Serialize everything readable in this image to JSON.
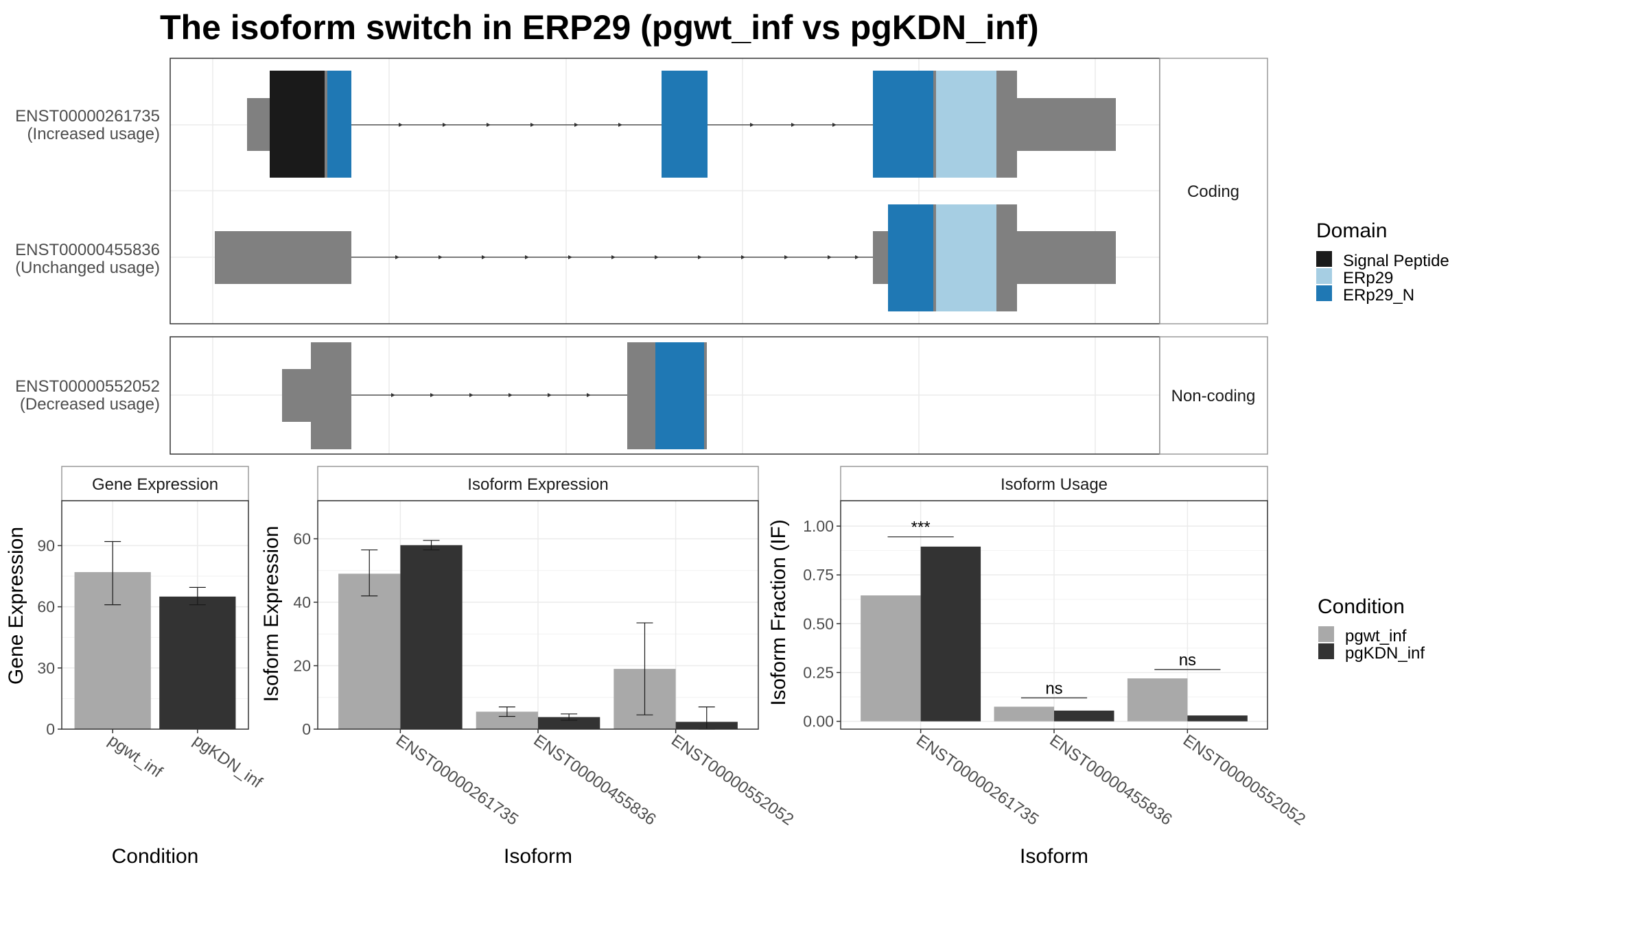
{
  "title": "The isoform switch in ERP29 (pgwt_inf vs pgKDN_inf)",
  "colors": {
    "domain": {
      "Signal Peptide": "#1a1a1a",
      "ERp29": "#a6cee3",
      "ERp29_N": "#1f78b4"
    },
    "noncoding": "#808080",
    "condition": {
      "pgwt_inf": "#a9a9a9",
      "pgKDN_inf": "#333333"
    }
  },
  "transcripts": {
    "coding_strip": "Coding",
    "noncoding_strip": "Non-coding",
    "rows": [
      {
        "id": "ENST00000261735",
        "usage": "(Increased usage)",
        "group": "coding"
      },
      {
        "id": "ENST00000455836",
        "usage": "(Unchanged usage)",
        "group": "coding"
      },
      {
        "id": "ENST00000552052",
        "usage": "(Decreased usage)",
        "group": "noncoding"
      }
    ]
  },
  "legend_domain": {
    "title": "Domain",
    "items": [
      {
        "label": "Signal Peptide",
        "color": "#1a1a1a"
      },
      {
        "label": "ERp29",
        "color": "#a6cee3"
      },
      {
        "label": "ERp29_N",
        "color": "#1f78b4"
      }
    ]
  },
  "legend_condition": {
    "title": "Condition",
    "items": [
      {
        "label": "pgwt_inf",
        "color": "#a9a9a9"
      },
      {
        "label": "pgKDN_inf",
        "color": "#333333"
      }
    ]
  },
  "chart_data": [
    {
      "type": "bar",
      "title": "Gene Expression",
      "xlabel": "Condition",
      "ylabel": "Gene Expression",
      "ylim": [
        0,
        112
      ],
      "yticks": [
        0,
        30,
        60,
        90
      ],
      "categories": [
        "pgwt_inf",
        "pgKDN_inf"
      ],
      "values": [
        77,
        65
      ],
      "errors": [
        [
          61,
          92
        ],
        [
          61,
          69.5
        ]
      ],
      "grid": true
    },
    {
      "type": "bar",
      "title": "Isoform Expression",
      "xlabel": "Isoform",
      "ylabel": "Isoform Expression",
      "ylim": [
        0,
        72
      ],
      "yticks": [
        0,
        20,
        40,
        60
      ],
      "categories": [
        "ENST00000261735",
        "ENST00000455836",
        "ENST00000552052"
      ],
      "series": [
        {
          "name": "pgwt_inf",
          "values": [
            49,
            5.5,
            19
          ],
          "errors": [
            [
              42,
              56.5
            ],
            [
              4,
              7
            ],
            [
              4.5,
              33.5
            ]
          ]
        },
        {
          "name": "pgKDN_inf",
          "values": [
            58,
            3.8,
            2.3
          ],
          "errors": [
            [
              56.5,
              59.5
            ],
            [
              2.8,
              4.8
            ],
            [
              0,
              7
            ]
          ]
        }
      ],
      "grid": true
    },
    {
      "type": "bar",
      "title": "Isoform Usage",
      "xlabel": "Isoform",
      "ylabel": "Isoform Fraction (IF)",
      "ylim": [
        -0.04,
        1.13
      ],
      "yticks": [
        0.0,
        0.25,
        0.5,
        0.75,
        1.0
      ],
      "ytick_labels": [
        "0.00",
        "0.25",
        "0.50",
        "0.75",
        "1.00"
      ],
      "categories": [
        "ENST00000261735",
        "ENST00000455836",
        "ENST00000552052"
      ],
      "series": [
        {
          "name": "pgwt_inf",
          "values": [
            0.645,
            0.075,
            0.22
          ]
        },
        {
          "name": "pgKDN_inf",
          "values": [
            0.895,
            0.055,
            0.03
          ]
        }
      ],
      "significance": [
        "***",
        "ns",
        "ns"
      ],
      "sig_y": [
        0.945,
        0.12,
        0.265
      ],
      "grid": true
    }
  ]
}
